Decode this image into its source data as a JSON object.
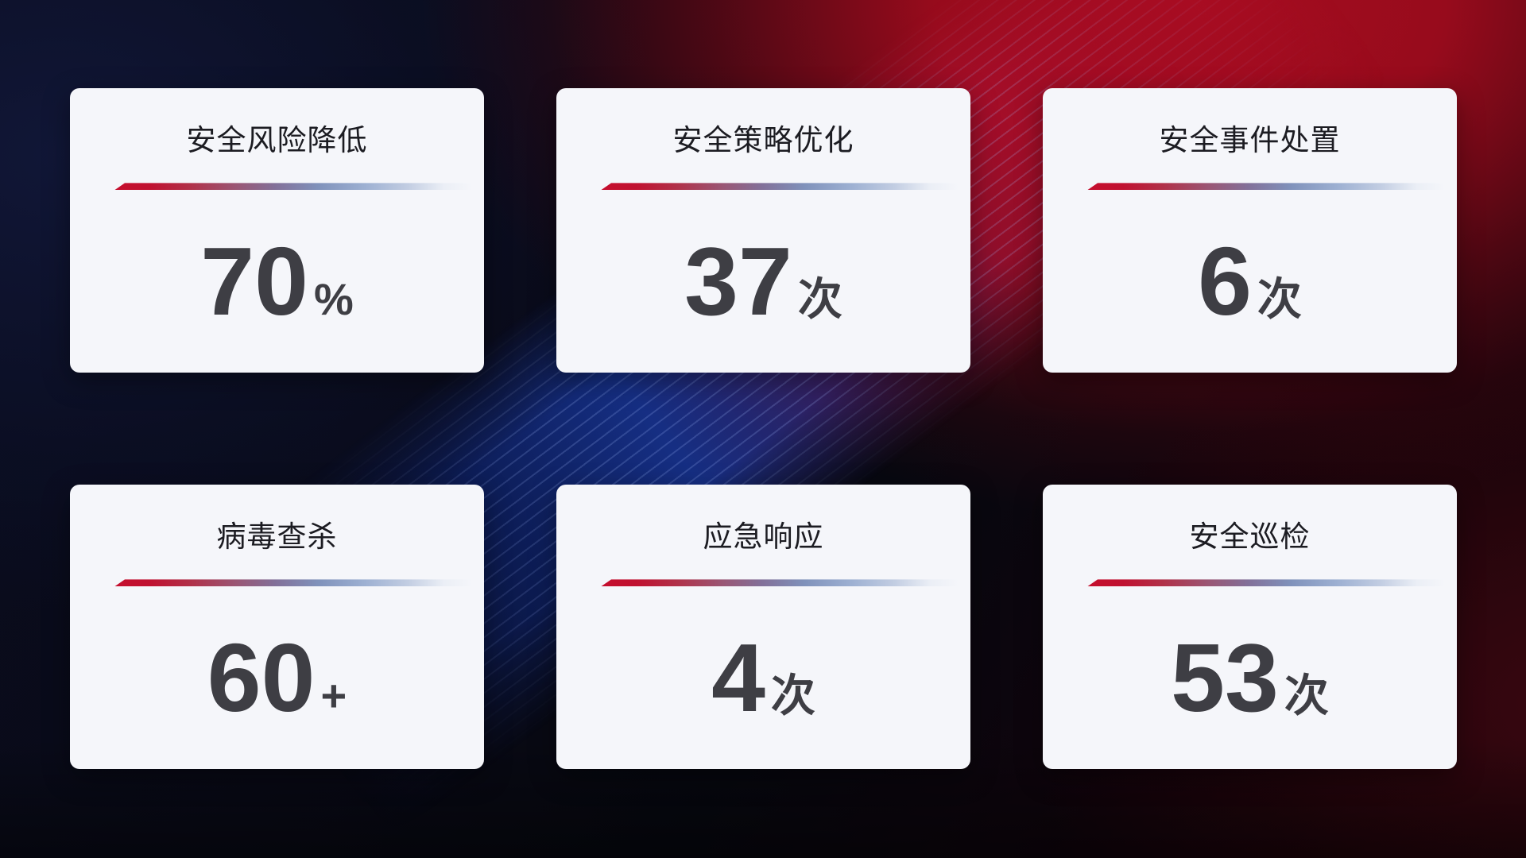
{
  "theme": {
    "card_bg": "#f5f6fa",
    "title_color": "#1c1c22",
    "value_color": "#3e3e44",
    "divider_red": "#c50e2d",
    "divider_blue": "#8092bb",
    "bg_navy": "#0a0e22",
    "bg_red": "#a80d20"
  },
  "cards": [
    {
      "title": "安全风险降低",
      "value": "70",
      "unit": "%"
    },
    {
      "title": "安全策略优化",
      "value": "37",
      "unit": "次"
    },
    {
      "title": "安全事件处置",
      "value": "6",
      "unit": "次"
    },
    {
      "title": "病毒查杀",
      "value": "60",
      "unit": "+"
    },
    {
      "title": "应急响应",
      "value": "4",
      "unit": "次"
    },
    {
      "title": "安全巡检",
      "value": "53",
      "unit": "次"
    }
  ]
}
